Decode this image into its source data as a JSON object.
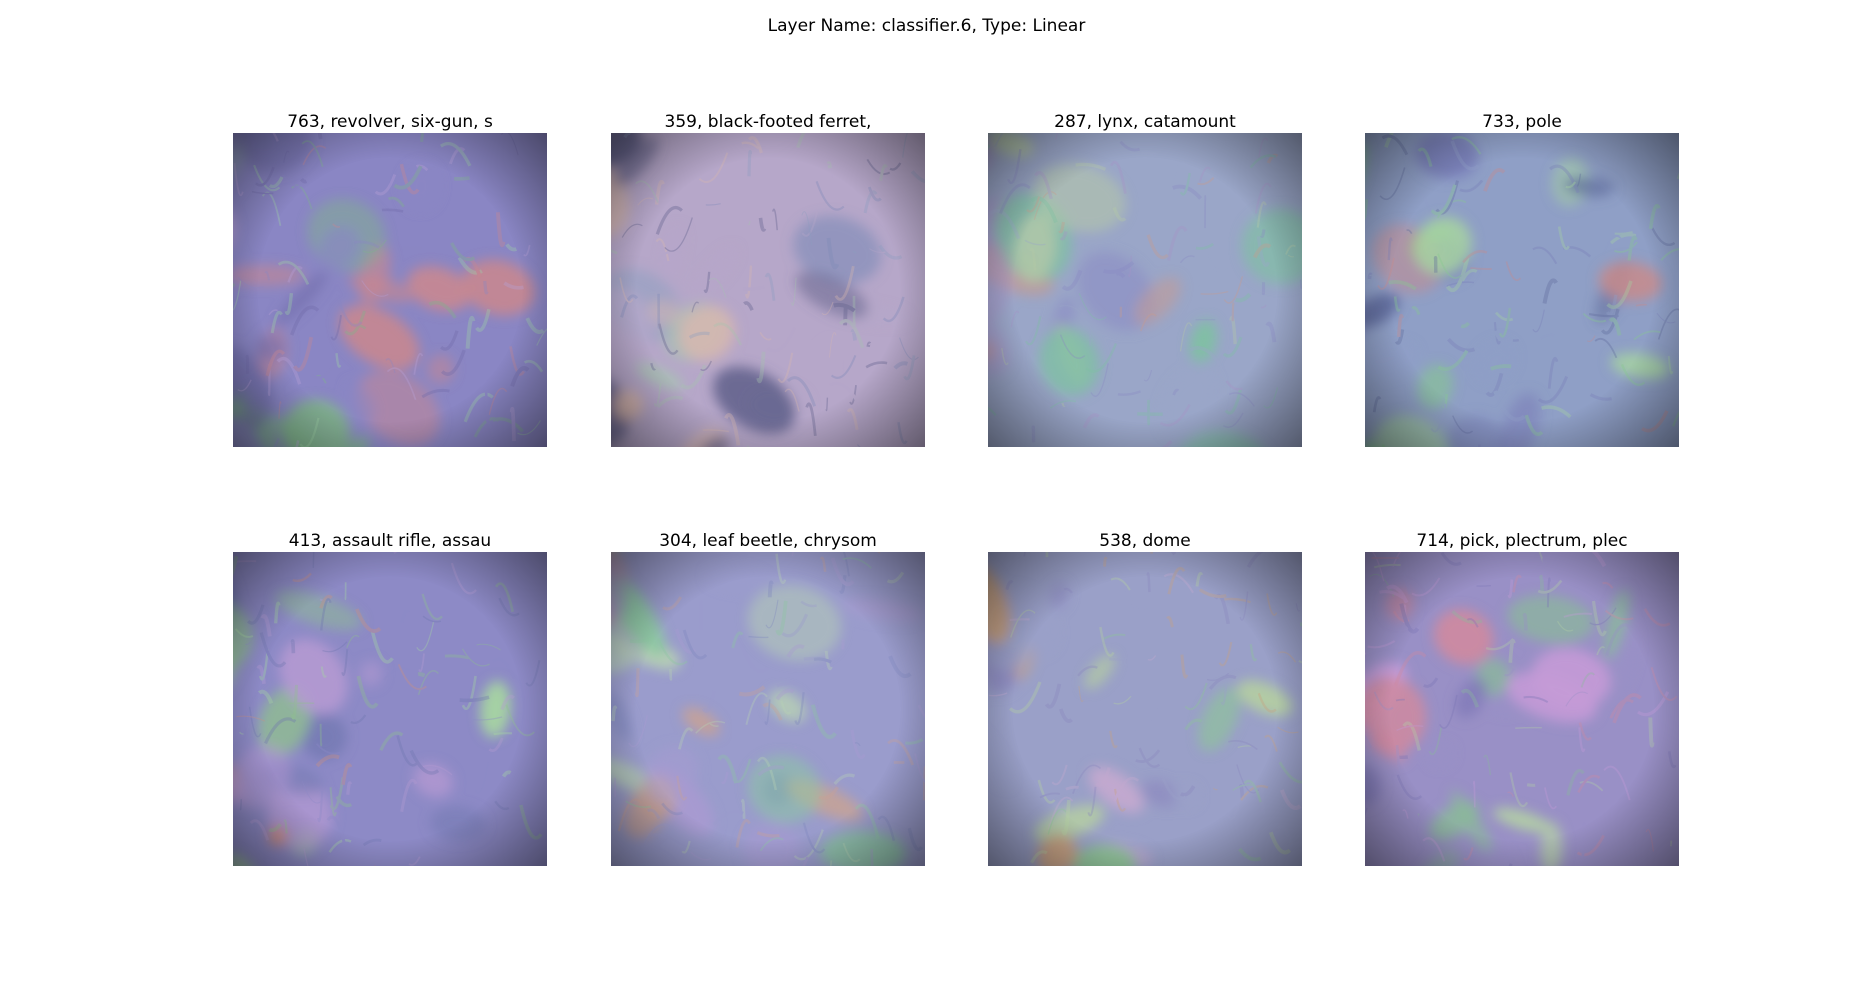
{
  "figure": {
    "title": "Layer Name: classifier.6, Type: Linear"
  },
  "panels": [
    {
      "label": "763, revolver, six-gun, s",
      "palette": [
        "#8a86c4",
        "#7fb48a",
        "#c9878f",
        "#6f6aa8",
        "#9fd1a6",
        "#b7a0d6"
      ]
    },
    {
      "label": "359, black-footed ferret,",
      "palette": [
        "#b6a7c9",
        "#8e9ec0",
        "#d7b7b0",
        "#7e8bb8",
        "#a7c4b0",
        "#5f5f8a"
      ]
    },
    {
      "label": "287, lynx, catamount",
      "palette": [
        "#9aa6c8",
        "#7fc0a3",
        "#c99a8c",
        "#8a8ac4",
        "#b6c9a7",
        "#a593c7"
      ]
    },
    {
      "label": "733, pole",
      "palette": [
        "#8f9fc6",
        "#86c98f",
        "#c88a8a",
        "#7a7fb8",
        "#a6d3a2",
        "#5e6a9a"
      ]
    },
    {
      "label": "413, assault rifle, assau",
      "palette": [
        "#8d8ac6",
        "#8fbf8e",
        "#cf8f7e",
        "#6f76ae",
        "#a7d7a0",
        "#b59ad2"
      ]
    },
    {
      "label": "304, leaf beetle, chrysom",
      "palette": [
        "#9a9ccc",
        "#8cc7a2",
        "#c8a294",
        "#7f88bd",
        "#b8d2b4",
        "#a89ad0"
      ]
    },
    {
      "label": "538, dome",
      "palette": [
        "#9aa0c8",
        "#8ec596",
        "#c9a27e",
        "#8b86be",
        "#b6d0a0",
        "#c4a9cf"
      ]
    },
    {
      "label": "714, pick, plectrum, plec",
      "palette": [
        "#9990c6",
        "#8ab99a",
        "#cf8aa0",
        "#7d76b6",
        "#b3cfa6",
        "#c49ad6"
      ]
    }
  ]
}
